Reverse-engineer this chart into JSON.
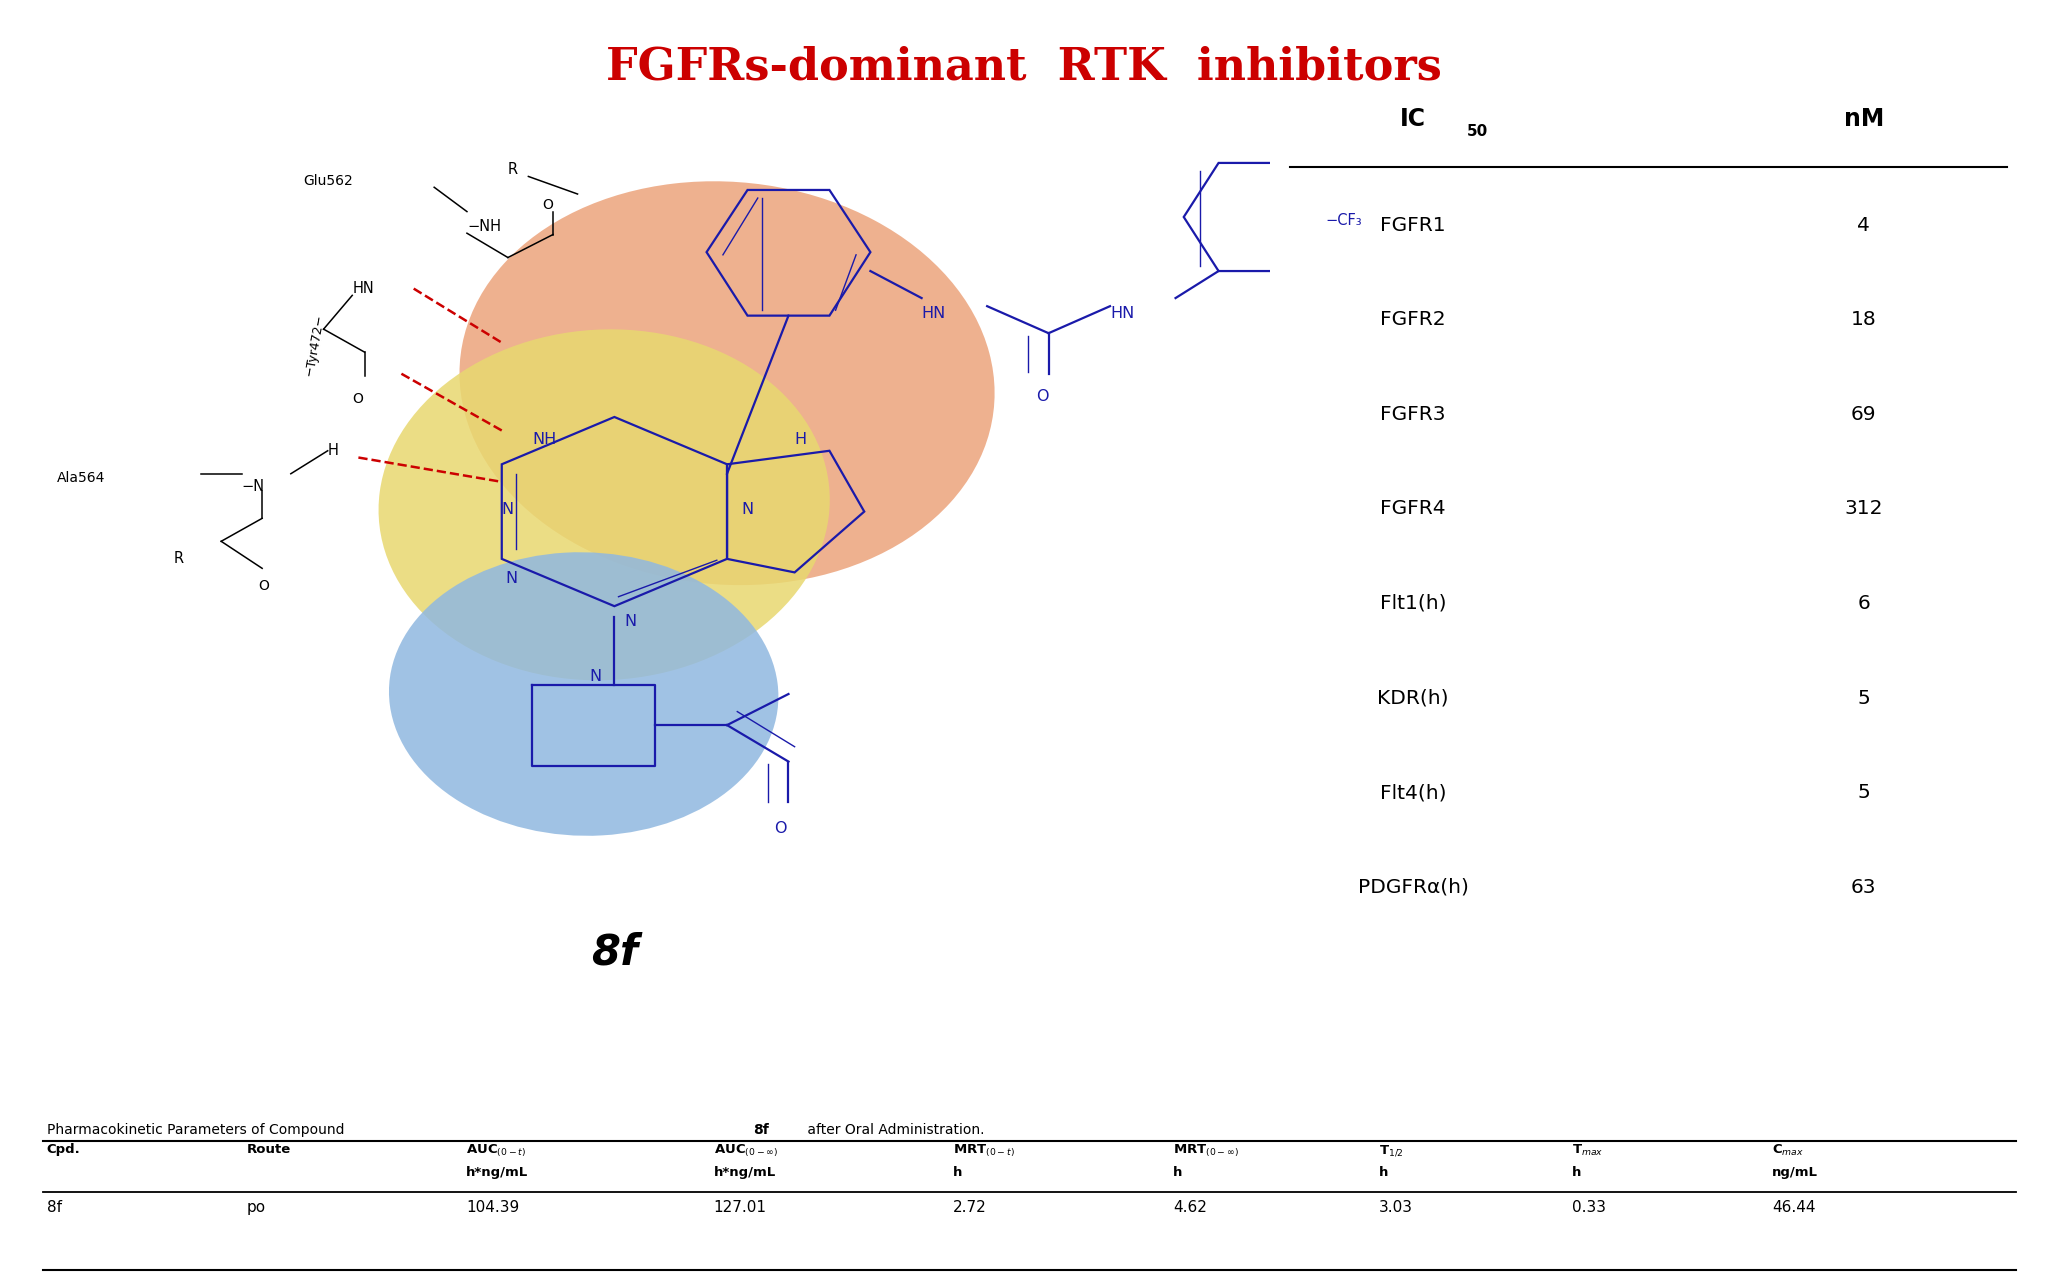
{
  "title": "FGFRs-dominant  RTK  inhibitors",
  "title_color": "#cc0000",
  "title_fontsize": 32,
  "bg_color": "#ffffff",
  "ic50_rows": [
    [
      "FGFR1",
      "4"
    ],
    [
      "FGFR2",
      "18"
    ],
    [
      "FGFR3",
      "69"
    ],
    [
      "FGFR4",
      "312"
    ],
    [
      "Flt1(h)",
      "6"
    ],
    [
      "KDR(h)",
      "5"
    ],
    [
      "Flt4(h)",
      "5"
    ],
    [
      "PDGFRα(h)",
      "63"
    ]
  ],
  "pk_caption_normal": "Pharmacokinetic Parameters of Compound ",
  "pk_caption_bold": "8f",
  "pk_caption_end": " after Oral Administration.",
  "pk_data": [
    "8f",
    "po",
    "104.39",
    "127.01",
    "2.72",
    "4.62",
    "3.03",
    "0.33",
    "46.44"
  ],
  "compound_label": "8f",
  "orange_blob_color": "#e89060",
  "yellow_blob_color": "#e8d870",
  "blue_blob_color": "#90b8e0",
  "mol_color": "#1a1aaa",
  "black": "#000000",
  "red": "#cc0000"
}
